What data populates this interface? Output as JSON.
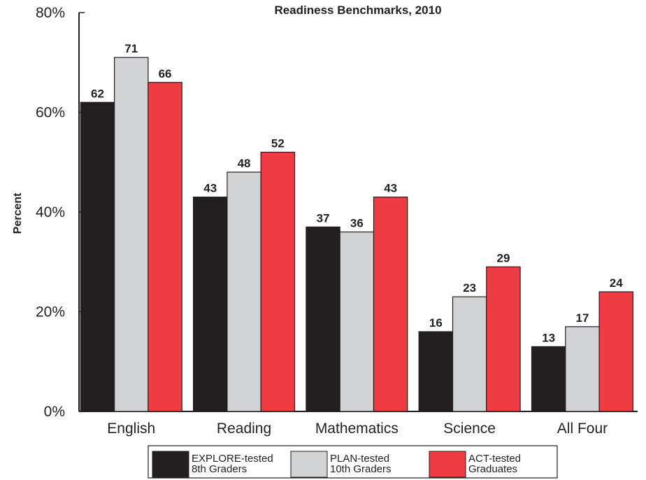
{
  "chart_data": {
    "type": "bar",
    "title": "Readiness Benchmarks, 2010",
    "ylabel": "Percent",
    "xlabel": "",
    "ylim": [
      0,
      80
    ],
    "yticks": [
      "0%",
      "20%",
      "40%",
      "60%",
      "80%"
    ],
    "grid": false,
    "legend_position": "bottom",
    "categories": [
      "English",
      "Reading",
      "Mathematics",
      "Science",
      "All Four"
    ],
    "series": [
      {
        "name": "EXPLORE-tested 8th Graders",
        "name_lines": [
          "EXPLORE-tested",
          "8th Graders"
        ],
        "color": "#231f20",
        "values": [
          62,
          43,
          37,
          16,
          13
        ]
      },
      {
        "name": "PLAN-tested 10th Graders",
        "name_lines": [
          "PLAN-tested",
          "10th Graders"
        ],
        "color": "#d1d3d4",
        "values": [
          71,
          48,
          36,
          23,
          17
        ]
      },
      {
        "name": "ACT-tested Graduates",
        "name_lines": [
          "ACT-tested",
          "Graduates"
        ],
        "color": "#ef3b42",
        "values": [
          66,
          52,
          43,
          29,
          24
        ]
      }
    ]
  }
}
